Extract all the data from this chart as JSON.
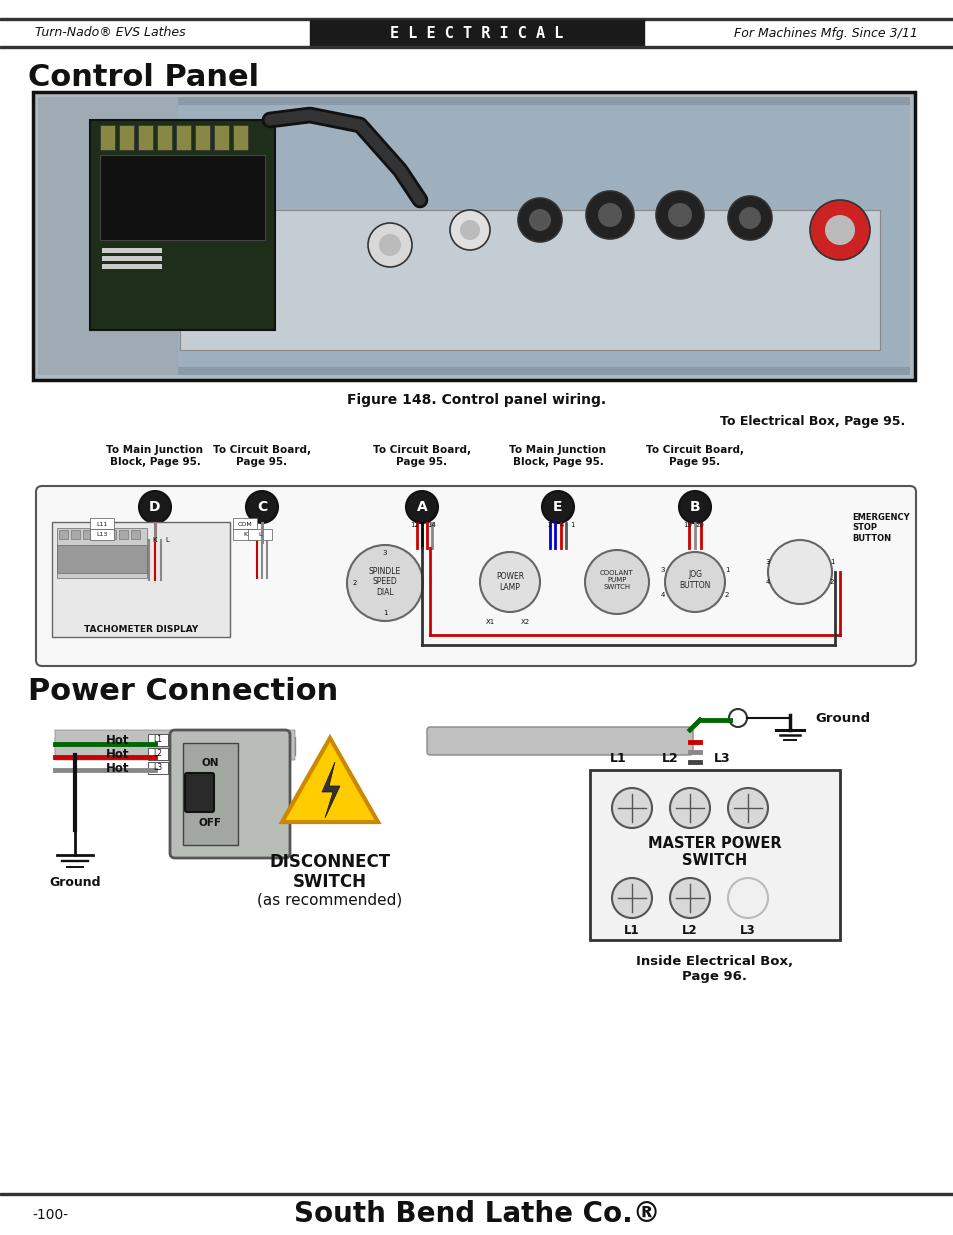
{
  "page_bg": "#ffffff",
  "header_bg": "#1a1a1a",
  "header_text": "E L E C T R I C A L",
  "header_left": "Turn-Nado® EVS Lathes",
  "header_right": "For Machines Mfg. Since 3/11",
  "section1_title": "Control Panel",
  "figure_caption": "Figure 148. Control panel wiring.",
  "section2_title": "Power Connection",
  "footer_left": "-100-",
  "footer_center": "South Bend Lathe Co.",
  "elec_box_label": "To Electrical Box, Page 95.",
  "tachometer_label": "TACHOMETER DISPLAY",
  "spindle_label": "SPINDLE\nSPEED\nDIAL",
  "power_lamp_label": "POWER\nLAMP",
  "coolant_label": "COOLANT\nPUMP\nSWITCH",
  "jog_label": "JOG\nBUTTON",
  "estop_label": "EMERGENCY\nSTOP\nBUTTON",
  "disconnect_label": "DISCONNECT\nSWITCH\n(as recommended)",
  "master_power_label": "MASTER POWER\nSWITCH",
  "inside_elec_label": "Inside Electrical Box,\nPage 96.",
  "hot_labels": [
    "Hot",
    "Hot",
    "Hot"
  ],
  "ground_label": "Ground",
  "color_red": "#cc0000",
  "color_green": "#006600",
  "color_black": "#000000",
  "color_gray": "#888888",
  "color_lightgray": "#cccccc",
  "color_darkgray": "#444444",
  "color_blue": "#0000cc",
  "color_brown": "#8B4513",
  "color_yellow": "#ffcc00",
  "color_photo_bg": "#b0b8c0"
}
